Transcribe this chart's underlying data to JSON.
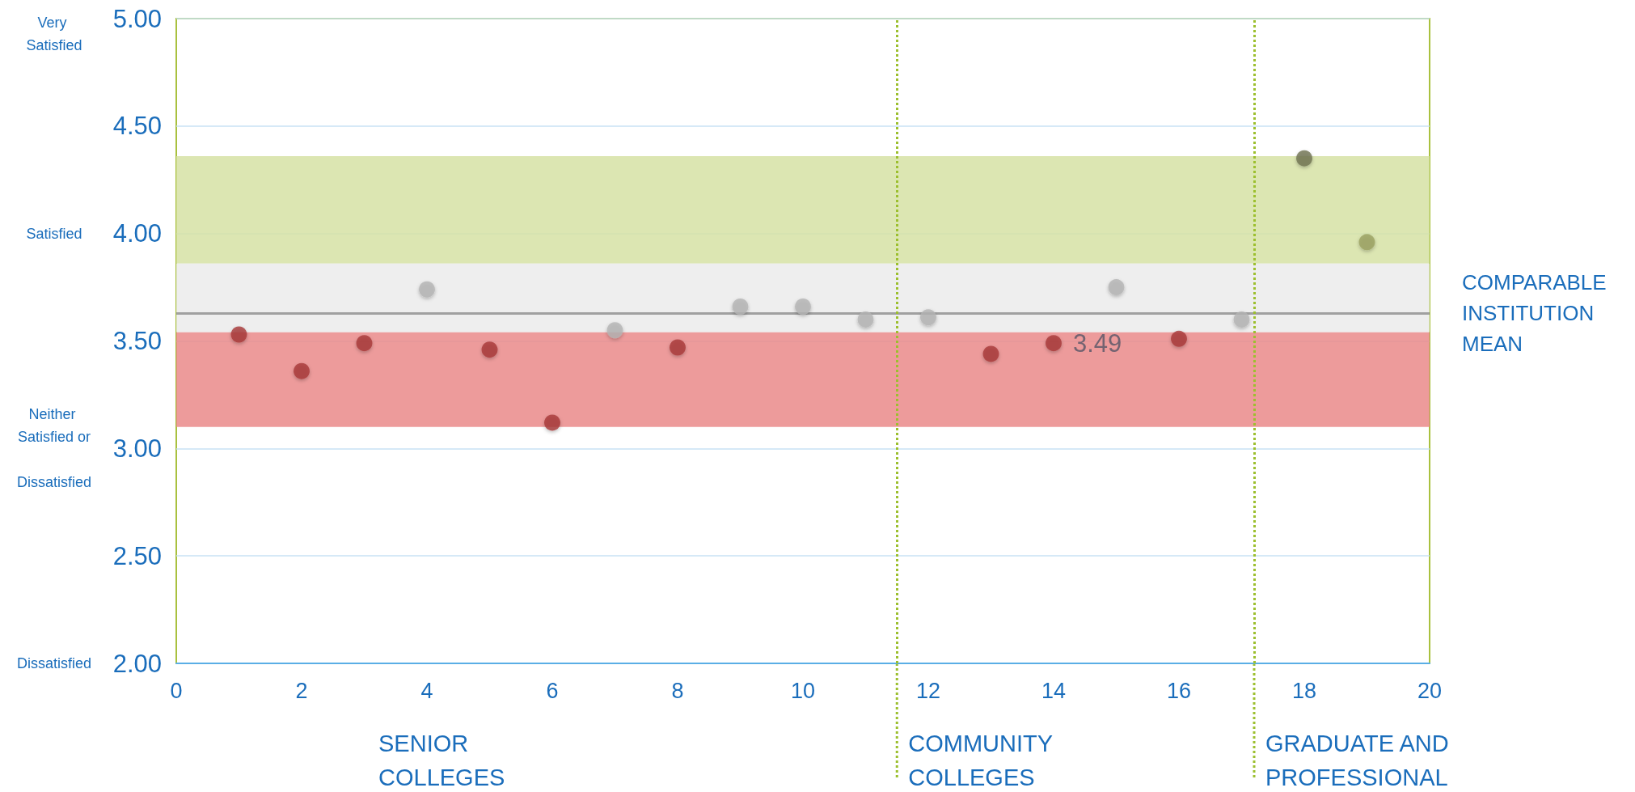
{
  "chart_data": {
    "type": "scatter",
    "x": [
      1,
      2,
      3,
      4,
      5,
      6,
      7,
      8,
      9,
      10,
      11,
      12,
      13,
      14,
      15,
      16,
      17,
      18,
      19
    ],
    "series": [
      {
        "values": [
          3.53,
          3.36,
          3.49,
          3.74,
          3.46,
          3.12,
          3.55,
          3.47,
          3.66,
          3.66,
          3.6,
          3.61,
          3.44,
          3.49,
          3.75,
          3.51,
          3.6,
          4.35,
          3.96
        ],
        "colors": [
          "#a83a3a",
          "#a83a3a",
          "#a83a3a",
          "#b4b4b4",
          "#a83a3a",
          "#a83a3a",
          "#b4b4b4",
          "#a83a3a",
          "#b4b4b4",
          "#b4b4b4",
          "#b4b4b4",
          "#b4b4b4",
          "#a83a3a",
          "#a83a3a",
          "#b4b4b4",
          "#a83a3a",
          "#b4b4b4",
          "#6f7352",
          "#9aa060"
        ],
        "value_labels": [
          null,
          null,
          null,
          null,
          null,
          null,
          null,
          null,
          null,
          null,
          null,
          null,
          null,
          "3.49",
          null,
          null,
          null,
          null,
          null
        ]
      }
    ],
    "xlim": [
      0,
      20
    ],
    "xticks": [
      0,
      2,
      4,
      6,
      8,
      10,
      12,
      14,
      16,
      18,
      20
    ],
    "ylim": [
      2,
      5
    ],
    "yticks": [
      {
        "value": 2,
        "label": "2.00"
      },
      {
        "value": 2.5,
        "label": "2.50"
      },
      {
        "value": 3,
        "label": "3.00"
      },
      {
        "value": 3.5,
        "label": "3.50"
      },
      {
        "value": 4,
        "label": "4.00"
      },
      {
        "value": 4.5,
        "label": "4.50"
      },
      {
        "value": 5,
        "label": "5.00"
      }
    ],
    "annotations": [
      "Very Satisfied",
      "Satisfied",
      "Neither Satisfied or Dissatisfied",
      "Dissatisfied",
      "SENIOR COLLEGES"
    ],
    "ref_lines": [
      {
        "axis": "y",
        "value": 3.63,
        "label": "COMPARABLE INSTITUTION MEAN",
        "color": "#a0a0a0",
        "line_style": "solid"
      },
      {
        "axis": "x",
        "value": 11.5,
        "label": "COMMUNITY COLLEGES",
        "color": "#9cbf2e",
        "line_style": "dotted"
      },
      {
        "axis": "x",
        "value": 17.2,
        "label": "GRADUATE AND PROFESSIONAL",
        "color": "#9cbf2e",
        "line_style": "dotted"
      }
    ],
    "bands": [
      {
        "axis": "y",
        "from": 3.86,
        "to": 4.36,
        "label": null,
        "color": "#d6e2a4"
      },
      {
        "axis": "y",
        "from": 3.54,
        "to": 3.86,
        "label": null,
        "color": "#ebebeb"
      },
      {
        "axis": "y",
        "from": 3.1,
        "to": 3.54,
        "label": null,
        "color": "#ea8a8a"
      }
    ],
    "grid": "y",
    "marker": "circle"
  }
}
